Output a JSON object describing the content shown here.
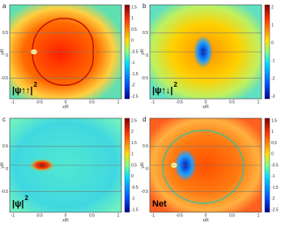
{
  "panels": [
    {
      "letter": "a",
      "inset": "|ψ↑↑|",
      "inset_sup": "2",
      "x_label": "x/R",
      "y_label": "y/R",
      "x_ticks": [
        "-1",
        "-0.5",
        "0",
        "0.5",
        "1"
      ],
      "y_ticks": [
        "0.5",
        "0",
        "-0.5"
      ],
      "colorbar_ticks": [
        "1.5",
        "1",
        "0.5",
        "0",
        "-0.5",
        "-1",
        "-1.5",
        "-2",
        "-2.5"
      ]
    },
    {
      "letter": "b",
      "inset": "|ψ↑↓|",
      "inset_sup": "2",
      "x_label": "x/R",
      "y_label": "y/R",
      "x_ticks": [
        "-1",
        "-0.5",
        "0",
        "0.5",
        "1"
      ],
      "y_ticks": [
        "0.5",
        "0",
        "-0.5"
      ],
      "colorbar_ticks": [
        "2",
        "1",
        "0",
        "-1",
        "-2",
        "-3"
      ]
    },
    {
      "letter": "c",
      "inset": "|ψ|",
      "inset_sup": "2",
      "x_label": "x/R",
      "y_label": "y/R",
      "x_ticks": [
        "-1",
        "-0.5",
        "0",
        "0.5",
        "1"
      ],
      "y_ticks": [
        "0.5",
        "0",
        "-0.5"
      ],
      "colorbar_ticks": [
        "2.5",
        "2",
        "1.5",
        "1",
        "0.5",
        "0",
        "-0.5",
        "-1",
        "-1.5"
      ]
    },
    {
      "letter": "d",
      "inset": "Net",
      "inset_sup": null,
      "x_label": "x/R",
      "y_label": "y/R",
      "x_ticks": [
        "-1",
        "-0.5",
        "0",
        "0.5",
        "1"
      ],
      "y_ticks": [
        "0.5",
        "0",
        "-0.5"
      ],
      "colorbar_ticks": [
        "1.5",
        "1",
        "0.5",
        "0",
        "-0.5",
        "-1",
        "-1.5",
        "-2",
        "-2.5"
      ]
    }
  ]
}
